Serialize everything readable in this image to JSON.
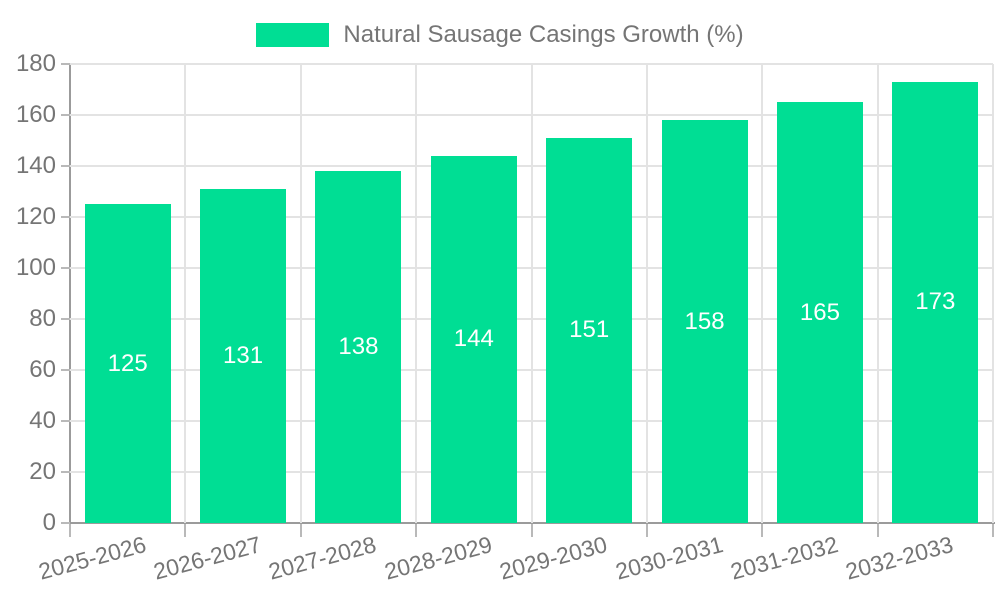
{
  "legend": {
    "label": "Natural Sausage Casings Growth (%)"
  },
  "colors": {
    "bar": "#00DE94",
    "grid": "#E3E3E3",
    "axis": "#9B9B9B",
    "tick": "#B9B9B9",
    "text": "#757575",
    "value_text": "#FFFFFF",
    "background": "#FFFFFF"
  },
  "chart_data": {
    "type": "bar",
    "title": "",
    "categories": [
      "2025-2026",
      "2026-2027",
      "2027-2028",
      "2028-2029",
      "2029-2030",
      "2030-2031",
      "2031-2032",
      "2032-2033"
    ],
    "series": [
      {
        "name": "Natural Sausage Casings Growth (%)",
        "values": [
          125,
          131,
          138,
          144,
          151,
          158,
          165,
          173
        ]
      }
    ],
    "xlabel": "",
    "ylabel": "",
    "ylim": [
      0,
      180
    ],
    "ytick_step": 20,
    "ytick_labels": [
      "0",
      "20",
      "40",
      "60",
      "80",
      "100",
      "120",
      "140",
      "160",
      "180"
    ],
    "grid": "horizontal and vertical",
    "legend_position": "top-center",
    "bar_labels": "inside-center, white"
  }
}
